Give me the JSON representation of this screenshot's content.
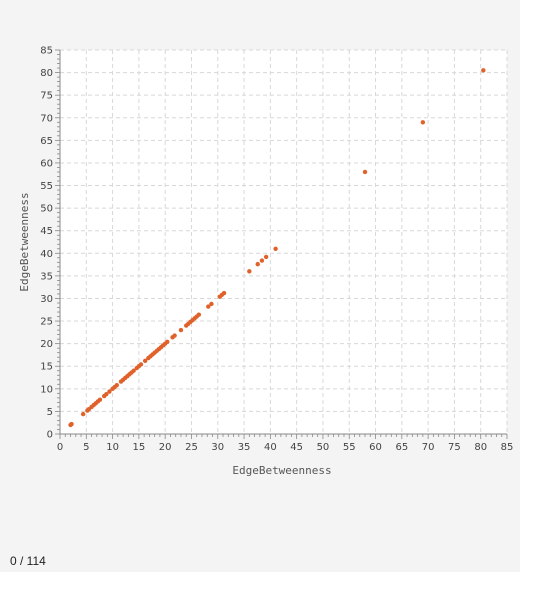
{
  "chart_data": {
    "type": "scatter",
    "xlabel": "EdgeBetweenness",
    "ylabel": "EdgeBetweenness",
    "xlim": [
      0,
      85
    ],
    "ylim": [
      0,
      85
    ],
    "xticks": [
      0,
      5,
      10,
      15,
      20,
      25,
      30,
      35,
      40,
      45,
      50,
      55,
      60,
      65,
      70,
      75,
      80,
      85
    ],
    "yticks": [
      0,
      5,
      10,
      15,
      20,
      25,
      30,
      35,
      40,
      45,
      50,
      55,
      60,
      65,
      70,
      75,
      80,
      85
    ],
    "grid": true,
    "point_color": "#e0622a",
    "points": [
      [
        2,
        2
      ],
      [
        2.2,
        2.2
      ],
      [
        4.4,
        4.4
      ],
      [
        5.2,
        5.2
      ],
      [
        5.5,
        5.5
      ],
      [
        6,
        6
      ],
      [
        6.4,
        6.4
      ],
      [
        6.8,
        6.8
      ],
      [
        7.2,
        7.2
      ],
      [
        7.6,
        7.6
      ],
      [
        8.4,
        8.4
      ],
      [
        8.8,
        8.8
      ],
      [
        9.4,
        9.4
      ],
      [
        10,
        10
      ],
      [
        10.4,
        10.4
      ],
      [
        10.8,
        10.8
      ],
      [
        11.6,
        11.6
      ],
      [
        12,
        12
      ],
      [
        12.4,
        12.4
      ],
      [
        12.8,
        12.8
      ],
      [
        13.2,
        13.2
      ],
      [
        13.6,
        13.6
      ],
      [
        14,
        14
      ],
      [
        14.6,
        14.6
      ],
      [
        15,
        15
      ],
      [
        15.4,
        15.4
      ],
      [
        16.2,
        16.2
      ],
      [
        16.8,
        16.8
      ],
      [
        17.2,
        17.2
      ],
      [
        17.6,
        17.6
      ],
      [
        18,
        18
      ],
      [
        18.4,
        18.4
      ],
      [
        18.8,
        18.8
      ],
      [
        19.2,
        19.2
      ],
      [
        19.6,
        19.6
      ],
      [
        20,
        20
      ],
      [
        20.4,
        20.4
      ],
      [
        21.4,
        21.4
      ],
      [
        21.8,
        21.8
      ],
      [
        23,
        23
      ],
      [
        24,
        24
      ],
      [
        24.4,
        24.4
      ],
      [
        24.8,
        24.8
      ],
      [
        25.2,
        25.2
      ],
      [
        25.6,
        25.6
      ],
      [
        26,
        26
      ],
      [
        26.4,
        26.4
      ],
      [
        28.2,
        28.2
      ],
      [
        28.8,
        28.8
      ],
      [
        30.4,
        30.4
      ],
      [
        30.8,
        30.8
      ],
      [
        31.2,
        31.2
      ],
      [
        36,
        36
      ],
      [
        37.6,
        37.6
      ],
      [
        38.4,
        38.4
      ],
      [
        39.2,
        39.2
      ],
      [
        41,
        41
      ],
      [
        58,
        58
      ],
      [
        69,
        69
      ],
      [
        80.5,
        80.5
      ]
    ]
  },
  "footer": {
    "counter": "0 / 114"
  }
}
